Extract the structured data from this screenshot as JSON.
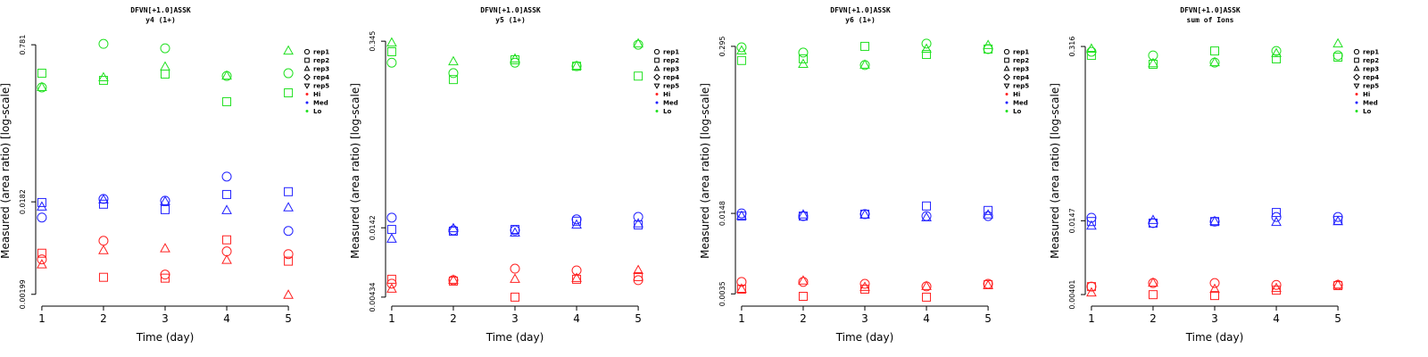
{
  "chart_data": [
    {
      "type": "scatter",
      "title": "DFVN[+1.0]ASSK",
      "subtitle": "y4 (1+)",
      "xlabel": "Time (day)",
      "ylabel": "Measured (area ratio) [log-scale]",
      "x": [
        1,
        2,
        3,
        4,
        5
      ],
      "xlim": [
        0.9,
        5.1
      ],
      "xticks": [
        1,
        2,
        3,
        4,
        5
      ],
      "ylim": [
        0.0015,
        0.97
      ],
      "yticks": [
        0.00199,
        0.0182,
        0.781
      ],
      "log_y": true,
      "reps": [
        {
          "name": "rep1",
          "shape": "circle"
        },
        {
          "name": "rep2",
          "shape": "square"
        },
        {
          "name": "rep3",
          "shape": "triangle"
        },
        {
          "name": "rep4",
          "shape": "diamond"
        },
        {
          "name": "rep5",
          "shape": "down-triangle"
        }
      ],
      "levels": [
        {
          "name": "Hi",
          "color": "#ff2020",
          "values": [
            [
              0.00459,
              0.00717,
              0.00319,
              0.00556,
              0.00521
            ],
            [
              0.00532,
              0.00299,
              0.00293,
              0.00733,
              0.0044
            ],
            [
              0.00404,
              0.00567,
              0.00593,
              0.00449,
              0.00195
            ]
          ]
        },
        {
          "name": "Med",
          "color": "#2020ff",
          "values": [
            [
              0.0125,
              0.0195,
              0.0187,
              0.0333,
              0.00907
            ],
            [
              0.0179,
              0.0172,
              0.0151,
              0.0217,
              0.0232
            ],
            [
              0.0161,
              0.0191,
              0.0183,
              0.0148,
              0.0158
            ]
          ]
        },
        {
          "name": "Lo",
          "color": "#20e020",
          "values": [
            [
              0.281,
              0.798,
              0.718,
              0.37,
              0.395
            ],
            [
              0.395,
              0.333,
              0.387,
              0.2,
              0.247
            ],
            [
              0.281,
              0.355,
              0.459,
              0.37,
              0.673
            ]
          ]
        }
      ]
    },
    {
      "type": "scatter",
      "title": "DFVN[+1.0]ASSK",
      "subtitle": "y5 (1+)",
      "xlabel": "Time (day)",
      "ylabel": "Measured (area ratio) [log-scale]",
      "x": [
        1,
        2,
        3,
        4,
        5
      ],
      "xlim": [
        0.9,
        5.1
      ],
      "xticks": [
        1,
        2,
        3,
        4,
        5
      ],
      "ylim": [
        0.00372,
        0.379
      ],
      "yticks": [
        0.00434,
        0.0142,
        0.345
      ],
      "log_y": true,
      "reps": [
        {
          "name": "rep1",
          "shape": "circle"
        },
        {
          "name": "rep2",
          "shape": "square"
        },
        {
          "name": "rep3",
          "shape": "triangle"
        },
        {
          "name": "rep4",
          "shape": "diamond"
        },
        {
          "name": "rep5",
          "shape": "down-triangle"
        }
      ],
      "levels": [
        {
          "name": "Hi",
          "color": "#ff2020",
          "values": [
            [
              0.00546,
              0.0058,
              0.00706,
              0.00685,
              0.0058
            ],
            [
              0.00589,
              0.00571,
              0.00434,
              0.00589,
              0.00616
            ],
            [
              0.00498,
              0.0058,
              0.00589,
              0.00598,
              0.00685
            ]
          ]
        },
        {
          "name": "Med",
          "color": "#2020ff",
          "values": [
            [
              0.0169,
              0.0136,
              0.0136,
              0.0164,
              0.0171
            ],
            [
              0.0138,
              0.0134,
              0.0138,
              0.0159,
              0.0149
            ],
            [
              0.0117,
              0.014,
              0.013,
              0.0149,
              0.0152
            ]
          ]
        },
        {
          "name": "Lo",
          "color": "#20e020",
          "values": [
            [
              0.239,
              0.2,
              0.239,
              0.225,
              0.325
            ],
            [
              0.288,
              0.179,
              0.251,
              0.225,
              0.19
            ],
            [
              0.335,
              0.243,
              0.255,
              0.225,
              0.33
            ]
          ]
        }
      ]
    },
    {
      "type": "scatter",
      "title": "DFVN[+1.0]ASSK",
      "subtitle": "y6 (1+)",
      "xlabel": "Time (day)",
      "ylabel": "Measured (area ratio) [log-scale]",
      "x": [
        1,
        2,
        3,
        4,
        5
      ],
      "xlim": [
        0.9,
        5.1
      ],
      "xticks": [
        1,
        2,
        3,
        4,
        5
      ],
      "ylim": [
        0.00281,
        0.357
      ],
      "yticks": [
        0.0035,
        0.0148,
        0.295
      ],
      "log_y": true,
      "reps": [
        {
          "name": "rep1",
          "shape": "circle"
        },
        {
          "name": "rep2",
          "shape": "square"
        },
        {
          "name": "rep3",
          "shape": "triangle"
        },
        {
          "name": "rep4",
          "shape": "diamond"
        },
        {
          "name": "rep5",
          "shape": "down-triangle"
        }
      ],
      "levels": [
        {
          "name": "Hi",
          "color": "#ff2020",
          "values": [
            [
              0.00434,
              0.00434,
              0.00419,
              0.004,
              0.00419
            ],
            [
              0.00381,
              0.00335,
              0.00381,
              0.0033,
              0.00413
            ],
            [
              0.00381,
              0.00441,
              0.00394,
              0.004,
              0.00406
            ]
          ]
        },
        {
          "name": "Med",
          "color": "#2020ff",
          "values": [
            [
              0.0148,
              0.0141,
              0.0146,
              0.0141,
              0.0141
            ],
            [
              0.0141,
              0.0141,
              0.0146,
              0.0169,
              0.0156
            ],
            [
              0.0141,
              0.0144,
              0.0144,
              0.0137,
              0.0144
            ]
          ]
        },
        {
          "name": "Lo",
          "color": "#20e020",
          "values": [
            [
              0.29,
              0.264,
              0.211,
              0.31,
              0.281
            ],
            [
              0.229,
              0.236,
              0.295,
              0.255,
              0.281
            ],
            [
              0.272,
              0.214,
              0.211,
              0.281,
              0.3
            ]
          ]
        }
      ]
    },
    {
      "type": "scatter",
      "title": "DFVN[+1.0]ASSK",
      "subtitle": "sum of Ions",
      "xlabel": "Time (day)",
      "ylabel": "Measured (area ratio) [log-scale]",
      "x": [
        1,
        2,
        3,
        4,
        5
      ],
      "xlim": [
        0.9,
        5.1
      ],
      "xticks": [
        1,
        2,
        3,
        4,
        5
      ],
      "ylim": [
        0.00327,
        0.382
      ],
      "yticks": [
        0.00401,
        0.0147,
        0.316
      ],
      "log_y": true,
      "reps": [
        {
          "name": "rep1",
          "shape": "circle"
        },
        {
          "name": "rep2",
          "shape": "square"
        },
        {
          "name": "rep3",
          "shape": "triangle"
        },
        {
          "name": "rep4",
          "shape": "diamond"
        },
        {
          "name": "rep5",
          "shape": "down-triangle"
        }
      ],
      "levels": [
        {
          "name": "Hi",
          "color": "#ff2020",
          "values": [
            [
              0.00461,
              0.00491,
              0.00491,
              0.00475,
              0.00475
            ],
            [
              0.00461,
              0.004,
              0.00394,
              0.00433,
              0.00469
            ],
            [
              0.00413,
              0.00491,
              0.0044,
              0.00447,
              0.00475
            ]
          ]
        },
        {
          "name": "Med",
          "color": "#2020ff",
          "values": [
            [
              0.0155,
              0.0141,
              0.0145,
              0.0157,
              0.0157
            ],
            [
              0.0145,
              0.0141,
              0.0145,
              0.017,
              0.0148
            ],
            [
              0.0134,
              0.0148,
              0.0145,
              0.0143,
              0.0145
            ]
          ]
        },
        {
          "name": "Lo",
          "color": "#20e020",
          "values": [
            [
              0.288,
              0.27,
              0.238,
              0.292,
              0.27
            ],
            [
              0.27,
              0.231,
              0.292,
              0.254,
              0.262
            ],
            [
              0.302,
              0.234,
              0.238,
              0.279,
              0.331
            ]
          ]
        }
      ]
    }
  ]
}
